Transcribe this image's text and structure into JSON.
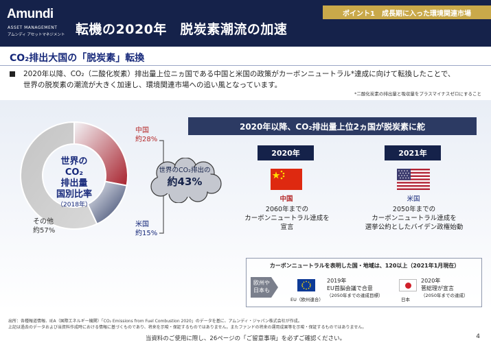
{
  "header": {
    "logo": "Amundi",
    "logo_sub_en": "ASSET MANAGEMENT",
    "logo_sub_jp": "アムンディ アセットマネジメント",
    "title": "転機の2020年　脱炭素潮流の加速",
    "point_tag": "ポイント1　成長期に入った環境関連市場"
  },
  "section_title": "CO₂排出大国の「脱炭素」転換",
  "body_line1": "2020年以降、CO₂（二酸化炭素）排出量上位ニヵ国である中国と米国の政策がカーボンニュートラル*達成に向けて転換したことで、",
  "body_line2": "世界の脱炭素の潮流が大きく加速し、環境関連市場への追い風となっています。",
  "footnote_right": "*二酸化炭素の排出量と吸収量をプラスマイナスゼロにすること",
  "chart_data": {
    "type": "pie",
    "title": "世界のCO₂排出量国別比率",
    "subtitle": "（2018年）",
    "categories": [
      "中国",
      "米国",
      "その他"
    ],
    "values": [
      28,
      15,
      57
    ],
    "unit": "%",
    "colors": [
      "#a82d35",
      "#3c4a72",
      "#c9c9c9"
    ]
  },
  "donut": {
    "center_l1": "世界の",
    "center_l2": "CO₂",
    "center_l3": "排出量",
    "center_l4": "国別比率",
    "center_l5": "（2018年）",
    "china_name": "中国",
    "china_pct": "約28%",
    "usa_name": "米国",
    "usa_pct": "約15%",
    "other_name": "その他",
    "other_pct": "約57%"
  },
  "cloud": {
    "line1": "世界のCO₂排出の",
    "line2": "約43%"
  },
  "banner": "2020年以降、CO₂排出量上位2ヵ国が脱炭素に舵",
  "china": {
    "year": "2020年",
    "name": "中国",
    "desc1": "2060年までの",
    "desc2": "カーボンニュートラル達成を",
    "desc3": "宣言"
  },
  "usa": {
    "year": "2021年",
    "name": "米国",
    "desc1": "2050年までの",
    "desc2": "カーボンニュートラル達成を",
    "desc3": "選挙公約としたバイデン政権始動"
  },
  "lower": {
    "title": "カーボンニュートラルを表明した国・地域は、120以上（2021年1月現在）",
    "arrow_l1": "欧州や",
    "arrow_l2": "日本も",
    "eu_label": "EU（欧州連合）",
    "eu_line1": "2019年",
    "eu_line2": "EU首脳会議で合意",
    "eu_line3": "（2050年までの達成目標）",
    "jp_label": "日本",
    "jp_line1": "2020年",
    "jp_line2": "菅総理が宣言",
    "jp_line3": "（2050年までの達成）"
  },
  "source_line1": "出所：各種報道情報、IEA（国際エネルギー機関）「CO₂ Emissions from Fuel Combustion 2020」のデータを基に、アムンディ・ジャパン株式会社が作成。",
  "source_line2": "上記は過去のデータおよび当資料作成時における情報に基づくものであり、将来を示唆・保証するものではありません。またファンドの将来の運用成果等を示唆・保証するものではありません。",
  "disclaimer": "当資料のご使用に際し、26ページの「ご留意事項」を必ずご確認ください。",
  "page_number": "4"
}
